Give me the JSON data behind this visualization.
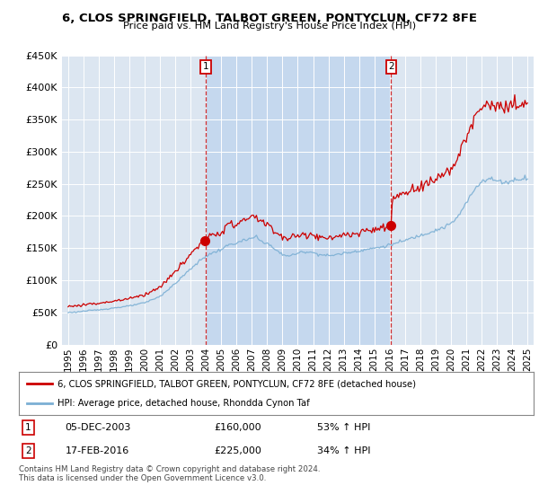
{
  "title": "6, CLOS SPRINGFIELD, TALBOT GREEN, PONTYCLUN, CF72 8FE",
  "subtitle": "Price paid vs. HM Land Registry's House Price Index (HPI)",
  "legend_line1": "6, CLOS SPRINGFIELD, TALBOT GREEN, PONTYCLUN, CF72 8FE (detached house)",
  "legend_line2": "HPI: Average price, detached house, Rhondda Cynon Taf",
  "sale1_date": "05-DEC-2003",
  "sale1_price": 160000,
  "sale1_hpi": "53% ↑ HPI",
  "sale2_date": "17-FEB-2016",
  "sale2_price": 225000,
  "sale2_hpi": "34% ↑ HPI",
  "footer": "Contains HM Land Registry data © Crown copyright and database right 2024.\nThis data is licensed under the Open Government Licence v3.0.",
  "hpi_color": "#7bafd4",
  "price_color": "#cc0000",
  "sale1_vline_x": 2004.0,
  "sale2_vline_x": 2016.1,
  "ylim": [
    0,
    450000
  ],
  "xlim_start": 1995,
  "xlim_end": 2025,
  "bg_color": "#dce6f1",
  "shade_color": "#c5d8ee"
}
